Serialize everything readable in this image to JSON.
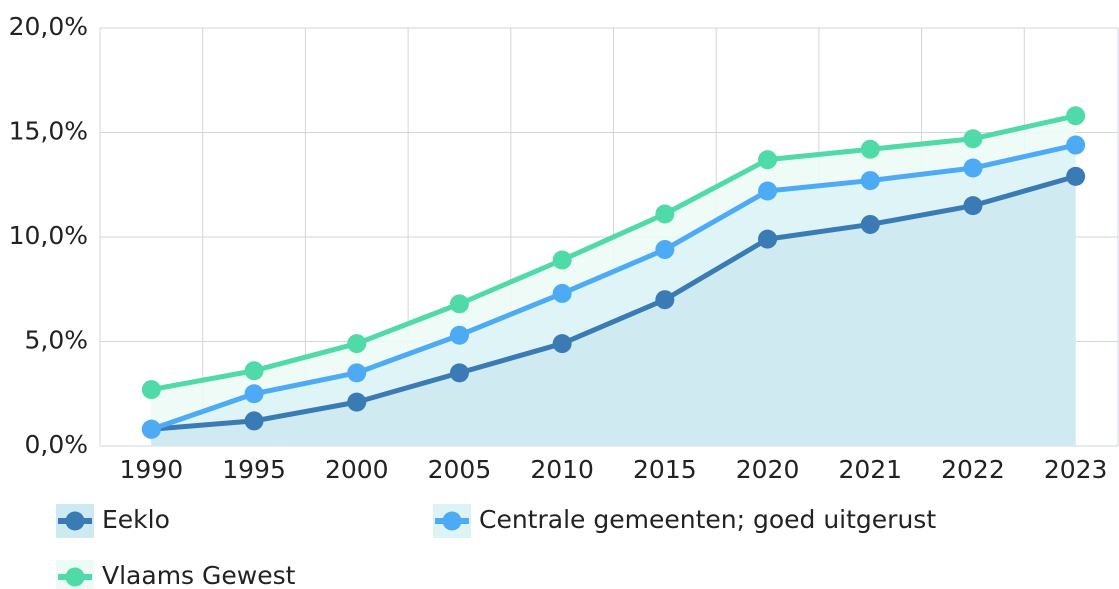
{
  "chart_data": {
    "type": "line",
    "categories": [
      "1990",
      "1995",
      "2000",
      "2005",
      "2010",
      "2015",
      "2020",
      "2021",
      "2022",
      "2023"
    ],
    "series": [
      {
        "name": "Eeklo",
        "color": "#3a7bb5",
        "values": [
          0.8,
          1.2,
          2.1,
          3.5,
          4.9,
          7.0,
          9.9,
          10.6,
          11.5,
          12.9
        ]
      },
      {
        "name": "Centrale gemeenten; goed uitgerust",
        "color": "#4dabf5",
        "values": [
          0.8,
          2.5,
          3.5,
          5.3,
          7.3,
          9.4,
          12.2,
          12.7,
          13.3,
          14.4
        ]
      },
      {
        "name": "Vlaams Gewest",
        "color": "#4fdaa8",
        "values": [
          2.7,
          3.6,
          4.9,
          6.8,
          8.9,
          11.1,
          13.7,
          14.2,
          14.7,
          15.8
        ]
      }
    ],
    "ylim": [
      0,
      20
    ],
    "yticks": [
      {
        "value": 0,
        "label": "0,0%"
      },
      {
        "value": 5,
        "label": "5,0%"
      },
      {
        "value": 10,
        "label": "10,0%"
      },
      {
        "value": 15,
        "label": "15,0%"
      },
      {
        "value": 20,
        "label": "20,0%"
      }
    ],
    "grid": true,
    "area": true,
    "legend": "bottom-left"
  }
}
